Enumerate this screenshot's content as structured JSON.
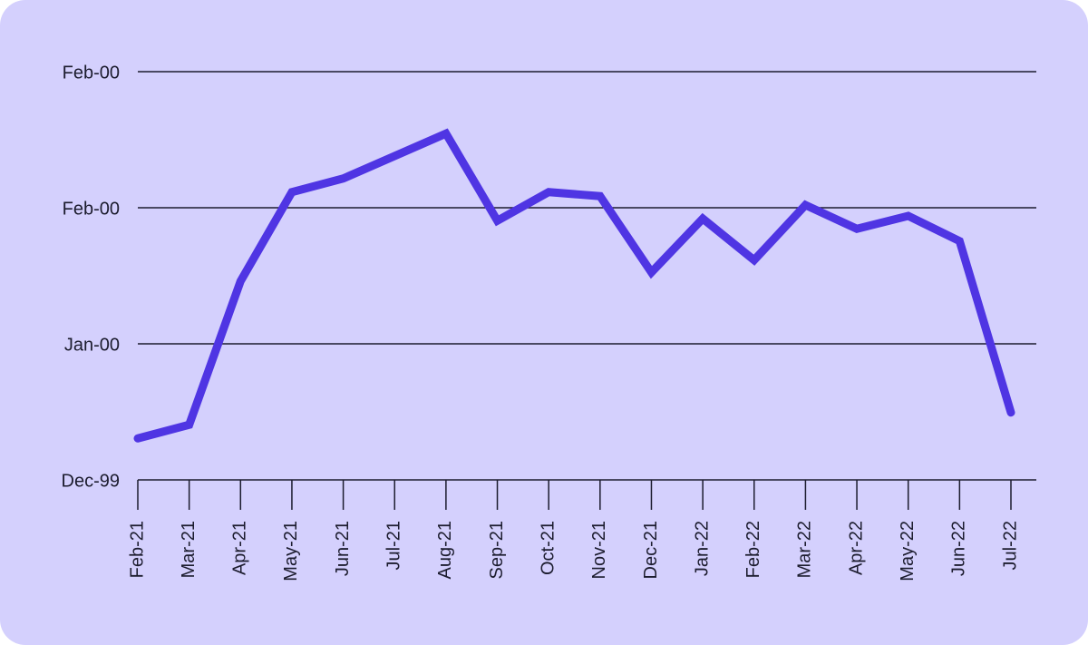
{
  "chart_data": {
    "type": "line",
    "categories": [
      "Feb-21",
      "Mar-21",
      "Apr-21",
      "May-21",
      "Jun-21",
      "Jul-21",
      "Aug-21",
      "Sep-21",
      "Oct-21",
      "Nov-21",
      "Dec-21",
      "Jan-22",
      "Feb-22",
      "Mar-22",
      "Apr-22",
      "May-22",
      "Jun-22",
      "Jul-22"
    ],
    "values": [
      6.1,
      8.1,
      29.2,
      42.3,
      44.3,
      47.6,
      50.9,
      38.1,
      42.3,
      41.7,
      30.5,
      38.4,
      32.3,
      40.4,
      36.9,
      38.8,
      35.1,
      9.9
    ],
    "color": "#4f35e3",
    "ylim": [
      0,
      60
    ],
    "yticks": [
      {
        "value": 0,
        "label": "Dec-99"
      },
      {
        "value": 20,
        "label": "Jan-00"
      },
      {
        "value": 40,
        "label": "Feb-00"
      },
      {
        "value": 60,
        "label": "Feb-00"
      }
    ],
    "grid": true
  }
}
